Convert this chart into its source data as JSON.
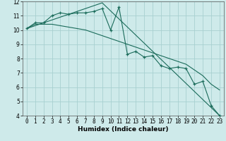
{
  "xlabel": "Humidex (Indice chaleur)",
  "bg_color": "#ceeaea",
  "grid_color": "#a8d0d0",
  "line_color": "#1a6b5a",
  "series1_x": [
    0,
    1,
    2,
    3,
    4,
    5,
    6,
    7,
    8,
    9,
    10,
    11,
    12,
    13,
    14,
    15,
    16,
    17,
    18,
    19,
    20,
    21,
    22,
    23
  ],
  "series1_y": [
    10.1,
    10.5,
    10.5,
    11.0,
    11.2,
    11.1,
    11.2,
    11.2,
    11.3,
    11.5,
    10.0,
    11.6,
    8.3,
    8.5,
    8.1,
    8.2,
    7.5,
    7.3,
    7.4,
    7.3,
    6.2,
    6.4,
    4.7,
    4.0
  ],
  "series2_x": [
    0,
    1,
    2,
    3,
    4,
    5,
    6,
    7,
    8,
    9,
    10,
    11,
    12,
    13,
    14,
    15,
    16,
    17,
    18,
    19,
    20,
    21,
    22,
    23
  ],
  "series2_y": [
    10.1,
    10.4,
    10.4,
    10.4,
    10.3,
    10.2,
    10.1,
    10.0,
    9.8,
    9.6,
    9.4,
    9.2,
    9.0,
    8.8,
    8.6,
    8.4,
    8.2,
    8.0,
    7.8,
    7.6,
    7.2,
    6.8,
    6.2,
    5.8
  ],
  "series3_x": [
    0,
    9,
    23
  ],
  "series3_y": [
    10.1,
    11.9,
    4.0
  ],
  "ylim": [
    4,
    12
  ],
  "xlim": [
    -0.5,
    23.5
  ],
  "yticks": [
    4,
    5,
    6,
    7,
    8,
    9,
    10,
    11,
    12
  ],
  "xticks": [
    0,
    1,
    2,
    3,
    4,
    5,
    6,
    7,
    8,
    9,
    10,
    11,
    12,
    13,
    14,
    15,
    16,
    17,
    18,
    19,
    20,
    21,
    22,
    23
  ]
}
